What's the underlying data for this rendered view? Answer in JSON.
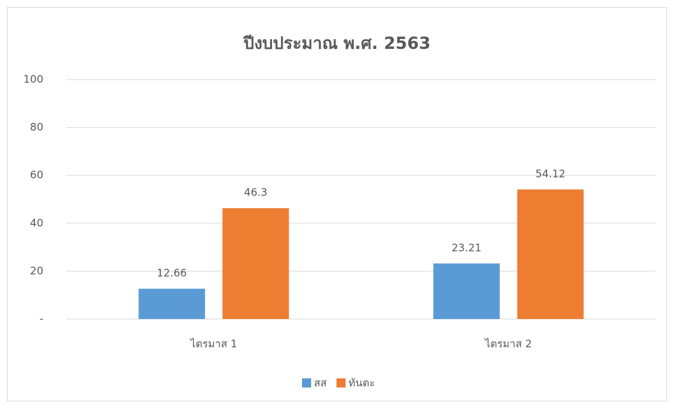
{
  "chart_data": {
    "type": "bar",
    "title": "ปีงบประมาณ พ.ศ. 2563",
    "categories": [
      "ไตรมาส 1",
      "ไตรมาส 2"
    ],
    "series": [
      {
        "name": "สส",
        "color": "#5b9bd5",
        "values": [
          12.66,
          23.21
        ]
      },
      {
        "name": "ทันตะ",
        "color": "#ed7d31",
        "values": [
          46.3,
          54.12
        ]
      }
    ],
    "ylim": [
      0,
      100
    ],
    "yticks": [
      {
        "value": 0,
        "label": "-"
      },
      20,
      40,
      60,
      80,
      100
    ],
    "grid": true,
    "legend": "bottom"
  }
}
